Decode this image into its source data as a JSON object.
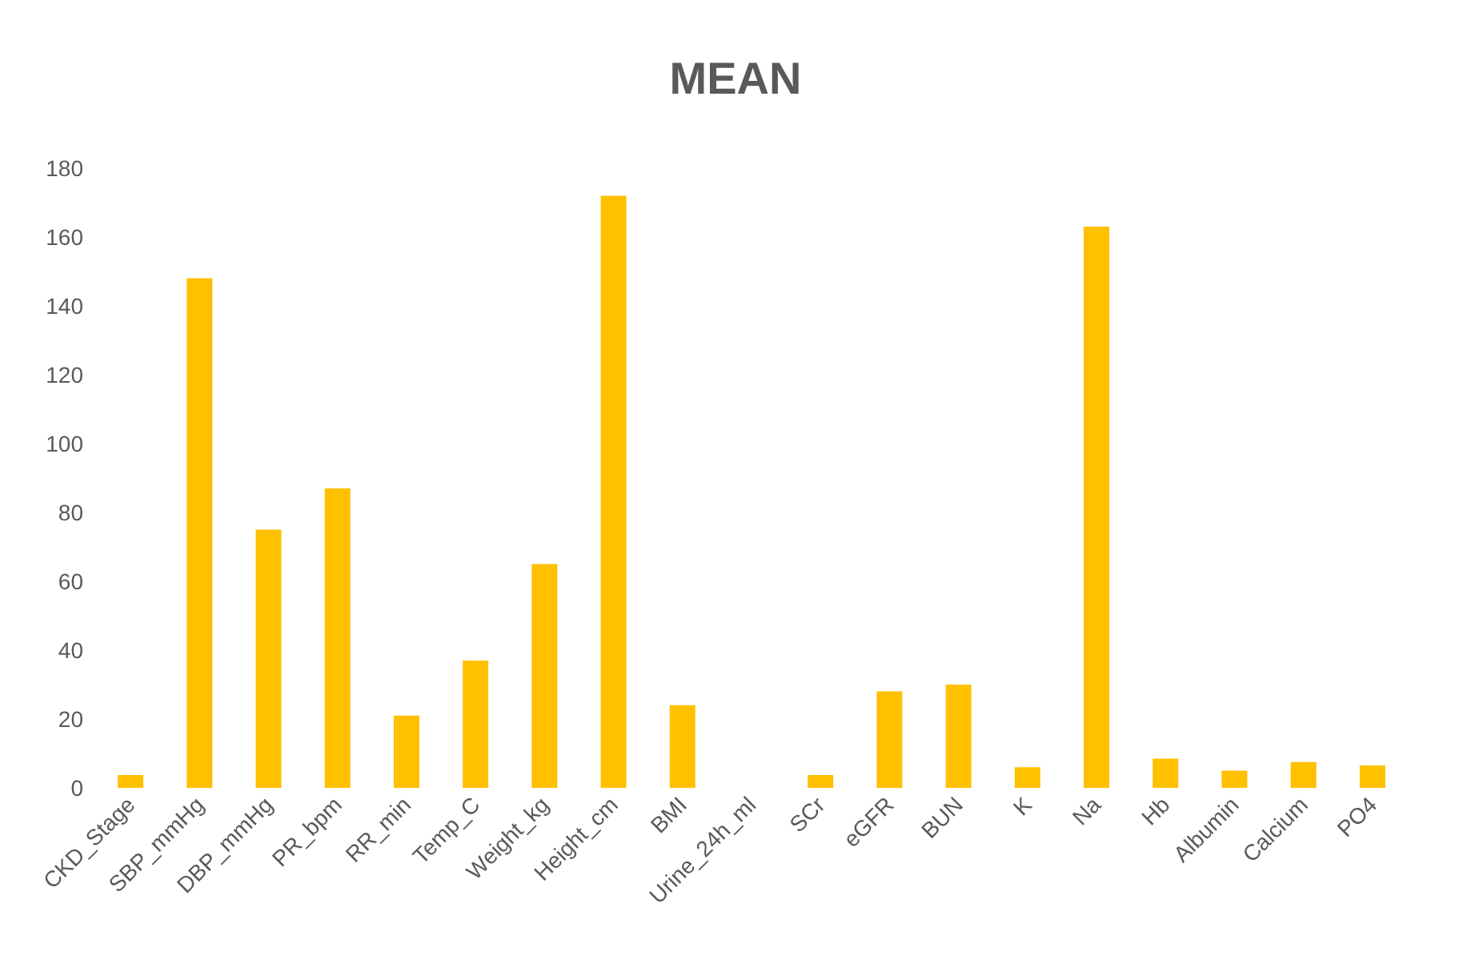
{
  "chart_data": {
    "type": "bar",
    "title": "MEAN",
    "categories": [
      "CKD_Stage",
      "SBP_mmHg",
      "DBP_mmHg",
      "PR_bpm",
      "RR_min",
      "Temp_C",
      "Weight_kg",
      "Height_cm",
      "BMI",
      "Urine_24h_ml",
      "SCr",
      "eGFR",
      "BUN",
      "K",
      "Na",
      "Hb",
      "Albumin",
      "Calcium",
      "PO4"
    ],
    "values": [
      3.7,
      148,
      75,
      87,
      21,
      37,
      65,
      172,
      24,
      null,
      3.7,
      28,
      30,
      6,
      163,
      8.5,
      5,
      7.5,
      6.5
    ],
    "color": "#ffc000",
    "ylim": [
      0,
      180
    ],
    "yticks": [
      0,
      20,
      40,
      60,
      80,
      100,
      120,
      140,
      160,
      180
    ],
    "grid": false
  }
}
